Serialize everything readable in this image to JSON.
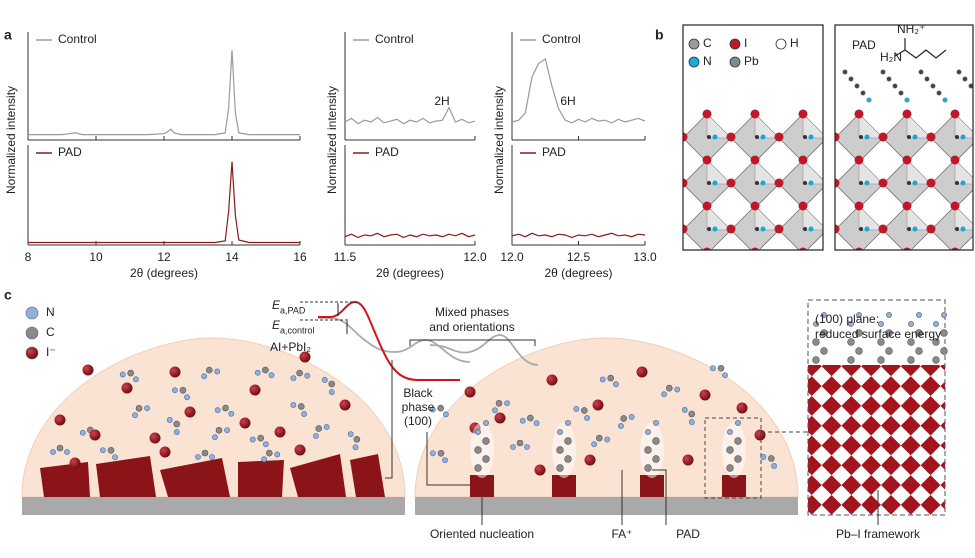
{
  "panels": [
    "a",
    "b",
    "c"
  ],
  "chart_data": [
    {
      "type": "line",
      "ylabel": "Normalized intensity",
      "xlabel": "2θ (degrees)",
      "xlim": [
        8,
        16
      ],
      "xticks": [
        8,
        10,
        12,
        14,
        16
      ],
      "ylim": [
        0,
        1.2
      ],
      "x": [
        8,
        8.5,
        9,
        9.4,
        9.6,
        10,
        10.5,
        11,
        11.5,
        12,
        12.1,
        12.2,
        12.3,
        12.5,
        13,
        13.5,
        13.8,
        13.9,
        14,
        14.1,
        14.2,
        14.5,
        15,
        15.5,
        16
      ],
      "series": [
        {
          "name": "Control",
          "color": "#9a9a9a",
          "values": [
            0.06,
            0.06,
            0.06,
            0.08,
            0.06,
            0.06,
            0.06,
            0.06,
            0.06,
            0.07,
            0.09,
            0.12,
            0.08,
            0.06,
            0.06,
            0.06,
            0.08,
            0.35,
            1,
            0.3,
            0.08,
            0.06,
            0.06,
            0.06,
            0.06
          ]
        },
        {
          "name": "PAD",
          "color": "#8b1a1a",
          "values": [
            0.03,
            0.03,
            0.03,
            0.03,
            0.03,
            0.03,
            0.03,
            0.03,
            0.03,
            0.03,
            0.03,
            0.03,
            0.03,
            0.03,
            0.03,
            0.03,
            0.05,
            0.4,
            1,
            0.35,
            0.06,
            0.03,
            0.03,
            0.03,
            0.03
          ]
        }
      ]
    },
    {
      "type": "line",
      "ylabel": "Normalized intensity",
      "xlabel": "2θ (degrees)",
      "annotation": "2H",
      "xlim": [
        11.5,
        12
      ],
      "xticks": [
        11.5,
        {
          "value": 12,
          "label": "12.0"
        }
      ],
      "ylim": [
        0,
        1.2
      ],
      "x": [
        11.5,
        11.525,
        11.55,
        11.575,
        11.6,
        11.625,
        11.65,
        11.675,
        11.7,
        11.725,
        11.75,
        11.775,
        11.8,
        11.825,
        11.85,
        11.875,
        11.9,
        11.925,
        11.95,
        11.975,
        12
      ],
      "series": [
        {
          "name": "Control",
          "color": "#9a9a9a",
          "values": [
            0.2,
            0.24,
            0.18,
            0.22,
            0.2,
            0.25,
            0.19,
            0.21,
            0.23,
            0.18,
            0.22,
            0.2,
            0.24,
            0.19,
            0.21,
            0.22,
            0.36,
            0.2,
            0.23,
            0.19,
            0.21
          ]
        },
        {
          "name": "PAD",
          "color": "#8b1a1a",
          "values": [
            0.1,
            0.13,
            0.09,
            0.12,
            0.11,
            0.14,
            0.1,
            0.12,
            0.13,
            0.09,
            0.12,
            0.1,
            0.13,
            0.11,
            0.12,
            0.1,
            0.13,
            0.11,
            0.14,
            0.1,
            0.12
          ]
        }
      ]
    },
    {
      "type": "line",
      "ylabel": "Normalized intensity",
      "xlabel": "2θ (degrees)",
      "annotation": "6H",
      "xlim": [
        12,
        13
      ],
      "xticks": [
        {
          "value": 12,
          "label": "12.0"
        },
        12.5,
        {
          "value": 13,
          "label": "13.0"
        }
      ],
      "ylim": [
        0,
        1.2
      ],
      "x": [
        12,
        12.05,
        12.1,
        12.15,
        12.2,
        12.25,
        12.3,
        12.35,
        12.4,
        12.45,
        12.5,
        12.55,
        12.6,
        12.65,
        12.7,
        12.75,
        12.8,
        12.85,
        12.9,
        12.95,
        13
      ],
      "series": [
        {
          "name": "Control",
          "color": "#9a9a9a",
          "values": [
            0.2,
            0.22,
            0.3,
            0.7,
            0.85,
            0.9,
            0.6,
            0.35,
            0.22,
            0.19,
            0.23,
            0.2,
            0.24,
            0.21,
            0.22,
            0.19,
            0.23,
            0.2,
            0.22,
            0.24,
            0.21
          ]
        },
        {
          "name": "PAD",
          "color": "#8b1a1a",
          "values": [
            0.11,
            0.13,
            0.1,
            0.14,
            0.11,
            0.12,
            0.1,
            0.13,
            0.12,
            0.09,
            0.12,
            0.11,
            0.13,
            0.1,
            0.12,
            0.14,
            0.11,
            0.12,
            0.1,
            0.13,
            0.12
          ]
        }
      ]
    }
  ],
  "structure": {
    "legend": [
      {
        "name": "C",
        "color": "#9a9a9a"
      },
      {
        "name": "I",
        "color": "#c0182a"
      },
      {
        "name": "H",
        "color": "#ffffff"
      },
      {
        "name": "N",
        "color": "#1aa8d8"
      },
      {
        "name": "Pb",
        "color": "#7f8a96"
      }
    ],
    "label": "PAD",
    "formula_top": "NH₂⁺",
    "formula_left": "H₂N"
  },
  "schematic": {
    "legend": [
      {
        "name": "N",
        "color": "#8fb0e0"
      },
      {
        "name": "C",
        "color": "#8a8a8a"
      },
      {
        "name": "I⁻",
        "color": "#8b1010"
      }
    ],
    "energy_pad": {
      "symbol": "E",
      "subscript": "a,PAD"
    },
    "energy_control": {
      "symbol": "E",
      "subscript": "a,control"
    },
    "reactants": "AI+PbI₂",
    "mixed": [
      "Mixed phases",
      "and orientations"
    ],
    "black_phase": [
      "Black",
      "phase",
      "(100)"
    ],
    "plane": [
      "(100) plane:",
      "reduced surface energy"
    ],
    "labels": {
      "nucleation": "Oriented nucleation",
      "fa": "FA⁺",
      "pad": "PAD",
      "framework": "Pb–I framework"
    }
  }
}
